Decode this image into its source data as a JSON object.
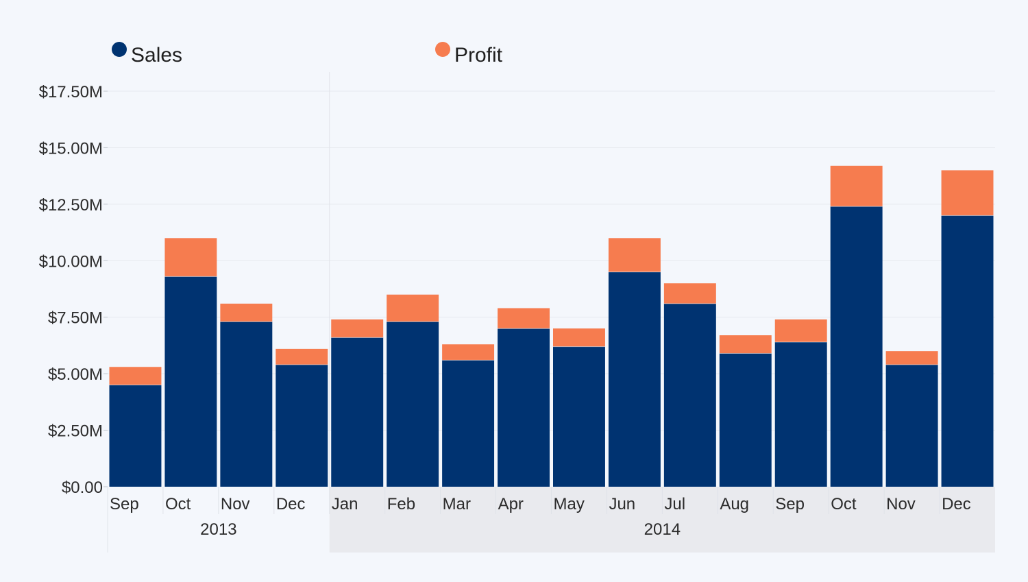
{
  "chart_data": {
    "type": "bar",
    "stacked": true,
    "categories": [
      "Sep",
      "Oct",
      "Nov",
      "Dec",
      "Jan",
      "Feb",
      "Mar",
      "Apr",
      "May",
      "Jun",
      "Jul",
      "Aug",
      "Sep",
      "Oct",
      "Nov",
      "Dec"
    ],
    "year_groups": [
      {
        "label": "2013",
        "count": 4
      },
      {
        "label": "2014",
        "count": 12
      }
    ],
    "series": [
      {
        "name": "Sales",
        "color": "#003371",
        "values": [
          4.5,
          9.3,
          7.3,
          5.4,
          6.6,
          7.3,
          5.6,
          7.0,
          6.2,
          9.5,
          8.1,
          5.9,
          6.4,
          12.4,
          5.4,
          12.0
        ]
      },
      {
        "name": "Profit",
        "color": "#f67c4f",
        "values": [
          0.8,
          1.7,
          0.8,
          0.7,
          0.8,
          1.2,
          0.7,
          0.9,
          0.8,
          1.5,
          0.9,
          0.8,
          1.0,
          1.8,
          0.6,
          2.0
        ]
      }
    ],
    "yticks": [
      "$0.00",
      "$2.50M",
      "$5.00M",
      "$7.50M",
      "$10.00M",
      "$12.50M",
      "$15.00M",
      "$17.50M"
    ],
    "ylim": [
      0,
      17.5
    ],
    "ytick_step": 2.5,
    "legend_position": "top-left",
    "title": "",
    "xlabel": "",
    "ylabel": ""
  }
}
